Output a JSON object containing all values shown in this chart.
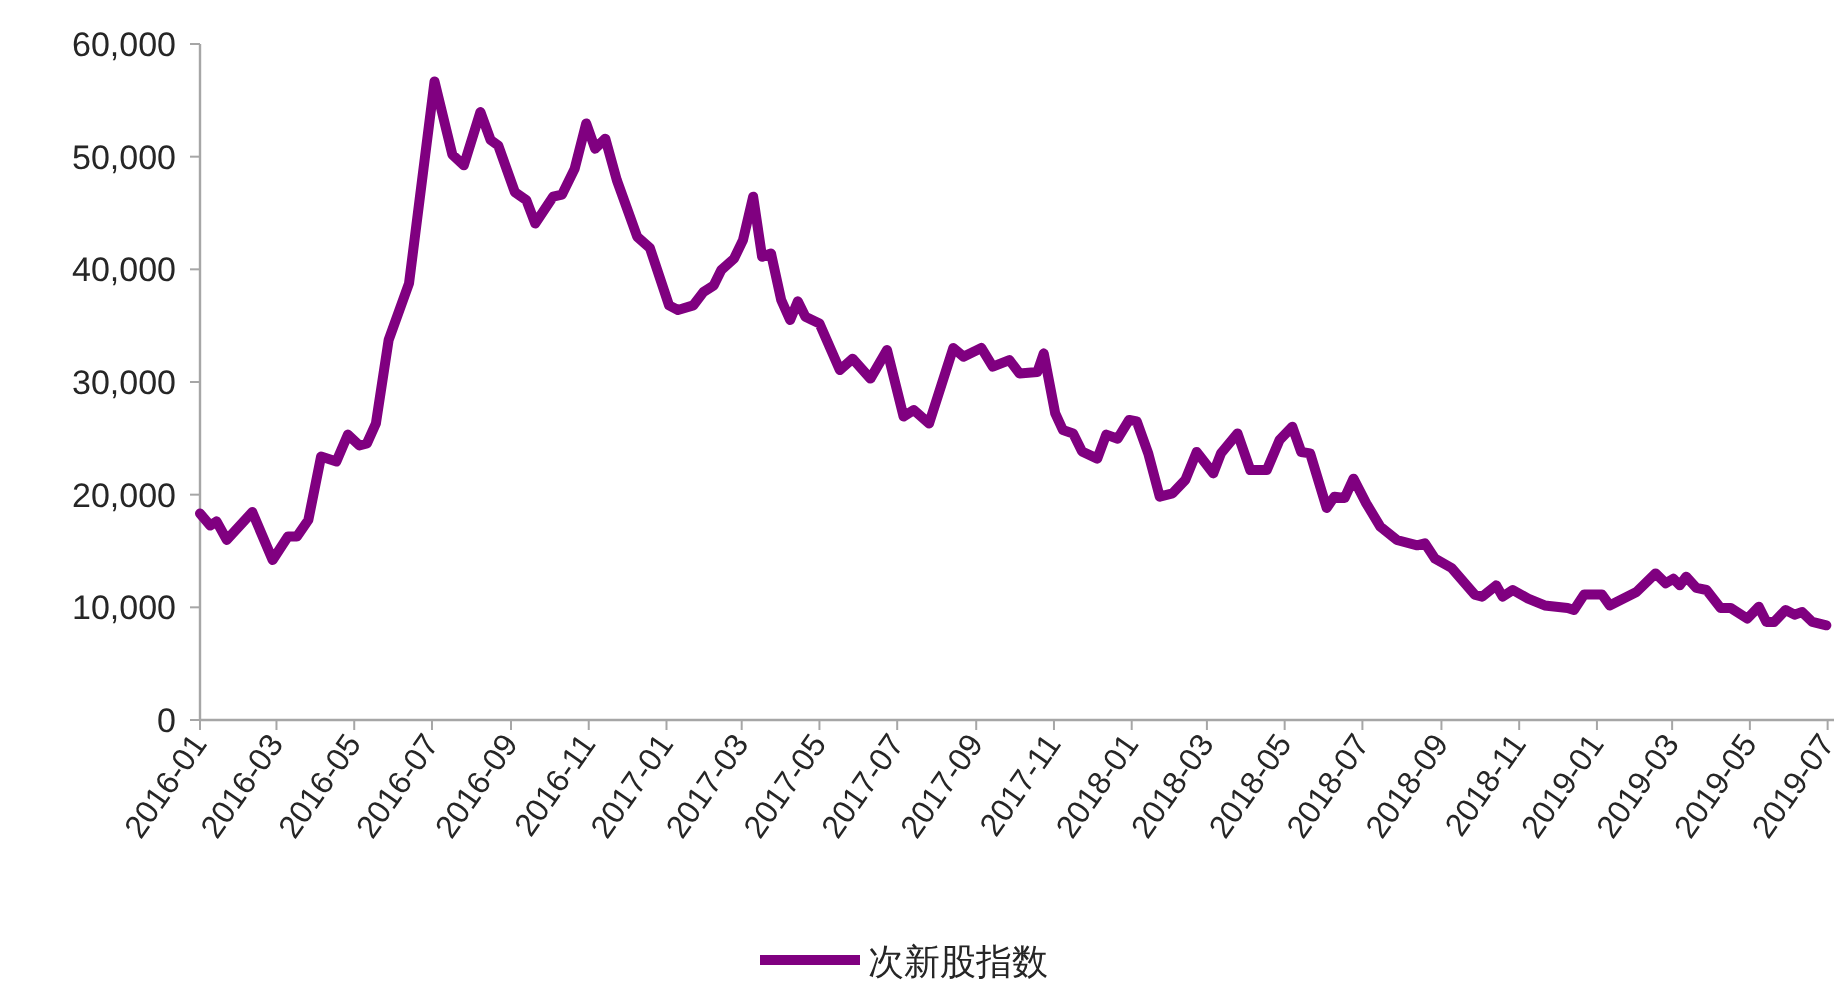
{
  "chart_data": {
    "type": "line",
    "x": [
      "2016-01-01",
      "2016-01-09",
      "2016-01-14",
      "2016-01-22",
      "2016-02-11",
      "2016-02-27",
      "2016-03-10",
      "2016-03-17",
      "2016-03-26",
      "2016-04-05",
      "2016-04-17",
      "2016-04-26",
      "2016-05-05",
      "2016-05-11",
      "2016-05-18",
      "2016-05-28",
      "2016-06-13",
      "2016-07-03",
      "2016-07-17",
      "2016-07-26",
      "2016-08-08",
      "2016-08-16",
      "2016-08-22",
      "2016-09-04",
      "2016-09-13",
      "2016-09-20",
      "2016-10-04",
      "2016-10-11",
      "2016-10-21",
      "2016-10-30",
      "2016-11-06",
      "2016-11-14",
      "2016-11-23",
      "2016-12-09",
      "2016-12-19",
      "2017-01-03",
      "2017-01-10",
      "2017-01-22",
      "2017-01-30",
      "2017-02-07",
      "2017-02-13",
      "2017-02-23",
      "2017-03-02",
      "2017-03-10",
      "2017-03-17",
      "2017-03-24",
      "2017-04-01",
      "2017-04-08",
      "2017-04-14",
      "2017-04-20",
      "2017-05-01",
      "2017-05-17",
      "2017-05-27",
      "2017-06-10",
      "2017-06-23",
      "2017-07-06",
      "2017-07-14",
      "2017-07-26",
      "2017-08-14",
      "2017-08-22",
      "2017-09-05",
      "2017-09-14",
      "2017-09-27",
      "2017-10-05",
      "2017-10-19",
      "2017-10-24",
      "2017-11-02",
      "2017-11-08",
      "2017-11-16",
      "2017-11-23",
      "2017-12-05",
      "2017-12-12",
      "2017-12-21",
      "2017-12-30",
      "2018-01-05",
      "2018-01-14",
      "2018-01-23",
      "2018-02-02",
      "2018-02-12",
      "2018-02-21",
      "2018-03-06",
      "2018-03-12",
      "2018-03-25",
      "2018-04-04",
      "2018-04-17",
      "2018-04-27",
      "2018-05-07",
      "2018-05-14",
      "2018-05-21",
      "2018-06-03",
      "2018-06-09",
      "2018-06-17",
      "2018-06-24",
      "2018-07-04",
      "2018-07-15",
      "2018-07-28",
      "2018-08-13",
      "2018-08-19",
      "2018-08-27",
      "2018-09-09",
      "2018-09-27",
      "2018-10-03",
      "2018-10-14",
      "2018-10-19",
      "2018-10-27",
      "2018-11-08",
      "2018-11-21",
      "2018-12-09",
      "2018-12-14",
      "2018-12-22",
      "2019-01-05",
      "2019-01-11",
      "2019-02-01",
      "2019-02-16",
      "2019-02-24",
      "2019-03-02",
      "2019-03-07",
      "2019-03-12",
      "2019-03-20",
      "2019-03-28",
      "2019-04-08",
      "2019-04-16",
      "2019-04-29",
      "2019-05-08",
      "2019-05-14",
      "2019-05-20",
      "2019-05-29",
      "2019-06-05",
      "2019-06-11",
      "2019-06-19",
      "2019-06-30"
    ],
    "series": [
      {
        "name": "次新股指数",
        "color": "#800080",
        "values": [
          18330,
          17270,
          17630,
          15980,
          18460,
          14200,
          16280,
          16280,
          17750,
          23380,
          22950,
          25330,
          24370,
          24550,
          26320,
          33730,
          38750,
          56680,
          50180,
          49230,
          53960,
          51480,
          50990,
          46860,
          46150,
          44070,
          46450,
          46630,
          48940,
          52950,
          50710,
          51600,
          47930,
          42900,
          41890,
          36800,
          36390,
          36800,
          37990,
          38570,
          39940,
          40950,
          42600,
          46450,
          41120,
          41410,
          37280,
          35500,
          37160,
          35800,
          35200,
          31060,
          32070,
          30300,
          32840,
          26930,
          27510,
          26320,
          33020,
          32250,
          33020,
          31360,
          31950,
          30760,
          30890,
          32540,
          27210,
          25740,
          25440,
          23840,
          23200,
          25330,
          24970,
          26630,
          26500,
          23660,
          19820,
          20110,
          21300,
          23790,
          21890,
          23660,
          25440,
          22190,
          22190,
          24850,
          26030,
          23790,
          23660,
          18820,
          19820,
          19700,
          21420,
          19230,
          17160,
          15980,
          15500,
          15680,
          14320,
          13490,
          11130,
          10950,
          11950,
          10950,
          11540,
          10770,
          10170,
          9940,
          9760,
          11130,
          11130,
          10170,
          11360,
          13010,
          12130,
          12540,
          11950,
          12720,
          11720,
          11540,
          9940,
          9940,
          9000,
          10060,
          8700,
          8700,
          9760,
          9350,
          9580,
          8700,
          8400
        ]
      }
    ],
    "xlim": [
      "2016-01-01",
      "2019-07-06"
    ],
    "xticks": [
      "2016-01",
      "2016-03",
      "2016-05",
      "2016-07",
      "2016-09",
      "2016-11",
      "2017-01",
      "2017-03",
      "2017-05",
      "2017-07",
      "2017-09",
      "2017-11",
      "2018-01",
      "2018-03",
      "2018-05",
      "2018-07",
      "2018-09",
      "2018-11",
      "2019-01",
      "2019-03",
      "2019-05",
      "2019-07"
    ],
    "ylim": [
      0,
      60000
    ],
    "yticks": [
      0,
      {
        "value": 10000,
        "label": "10,000"
      },
      {
        "value": 20000,
        "label": "20,000"
      },
      {
        "value": 30000,
        "label": "30,000"
      },
      {
        "value": 40000,
        "label": "40,000"
      },
      {
        "value": 50000,
        "label": "50,000"
      },
      {
        "value": 60000,
        "label": "60,000"
      }
    ],
    "grid": false,
    "legend": "bottom",
    "marker": "none",
    "line_style": "solid"
  }
}
